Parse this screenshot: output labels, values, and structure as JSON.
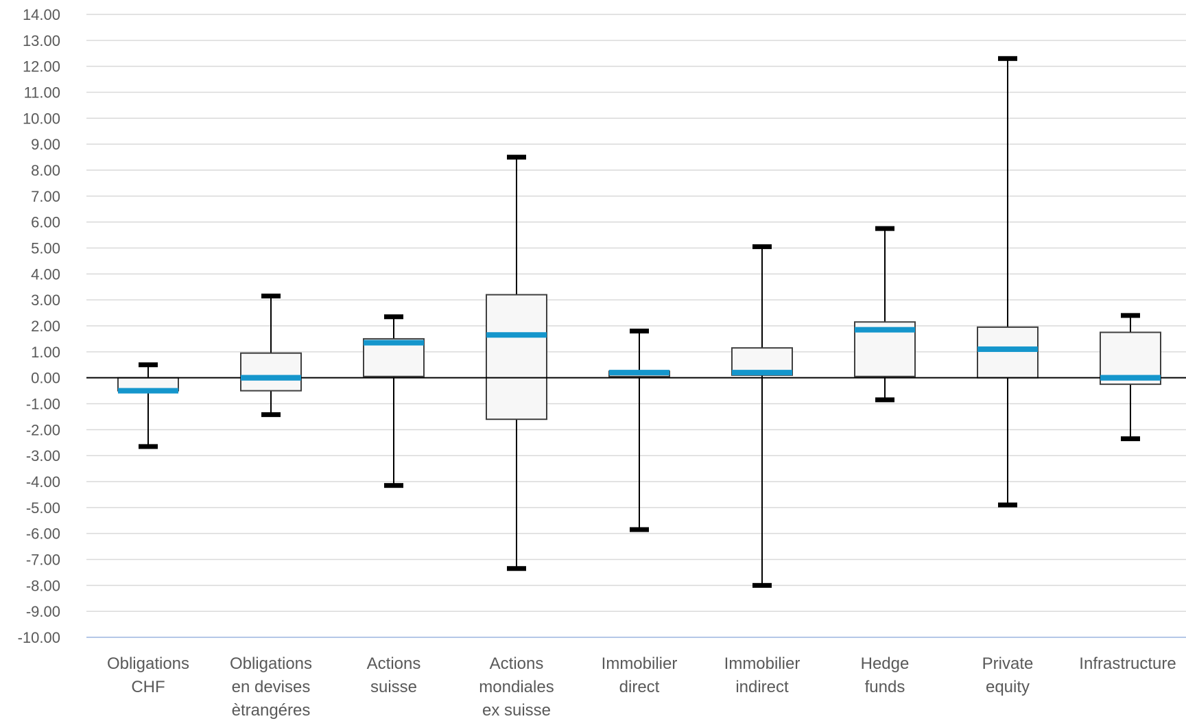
{
  "chart_data": {
    "type": "boxplot",
    "categories": [
      [
        "Obligations",
        "CHF"
      ],
      [
        "Obligations",
        "en devises",
        "ètrangéres"
      ],
      [
        "Actions",
        "suisse"
      ],
      [
        "Actions",
        "mondiales",
        "ex suisse"
      ],
      [
        "Immobilier",
        "direct"
      ],
      [
        "Immobilier",
        "indirect"
      ],
      [
        "Hedge",
        "funds"
      ],
      [
        "Private",
        "equity"
      ],
      [
        "Infrastructure"
      ]
    ],
    "boxes": [
      {
        "min": -2.65,
        "q1": -0.5,
        "median": -0.5,
        "q3": 0.0,
        "max": 0.5
      },
      {
        "min": -1.42,
        "q1": -0.5,
        "median": 0.0,
        "q3": 0.95,
        "max": 3.15
      },
      {
        "min": -4.15,
        "q1": 0.05,
        "median": 1.35,
        "q3": 1.5,
        "max": 2.35
      },
      {
        "min": -7.35,
        "q1": -1.6,
        "median": 1.65,
        "q3": 3.2,
        "max": 8.5
      },
      {
        "min": -5.85,
        "q1": 0.05,
        "median": 0.2,
        "q3": 0.25,
        "max": 1.8
      },
      {
        "min": -8.0,
        "q1": 0.1,
        "median": 0.2,
        "q3": 1.15,
        "max": 5.05
      },
      {
        "min": -0.85,
        "q1": 0.05,
        "median": 1.85,
        "q3": 2.15,
        "max": 5.75
      },
      {
        "min": -4.9,
        "q1": 0.0,
        "median": 1.1,
        "q3": 1.95,
        "max": 12.3
      },
      {
        "min": -2.35,
        "q1": -0.25,
        "median": 0.0,
        "q3": 1.75,
        "max": 2.4
      }
    ],
    "ylim": [
      -10,
      14
    ],
    "yticks": [
      "14.00",
      "13.00",
      "12.00",
      "11.00",
      "10.00",
      "9.00",
      "8.00",
      "7.00",
      "6.00",
      "5.00",
      "4.00",
      "3.00",
      "2.00",
      "1.00",
      "0.00",
      "-1.00",
      "-2.00",
      "-3.00",
      "-4.00",
      "-5.00",
      "-6.00",
      "-7.00",
      "-8.00",
      "-9.00",
      "-10.00"
    ],
    "grid": true,
    "colors": {
      "median": "#1596cc",
      "box_fill": "#f7f7f7",
      "box_stroke": "#3f3f3f",
      "whisker": "#000000",
      "grid": "#d9d9d9",
      "axis_bottom": "#b4c7e7",
      "zero_line": "#000000",
      "tick_text": "#595959"
    }
  }
}
